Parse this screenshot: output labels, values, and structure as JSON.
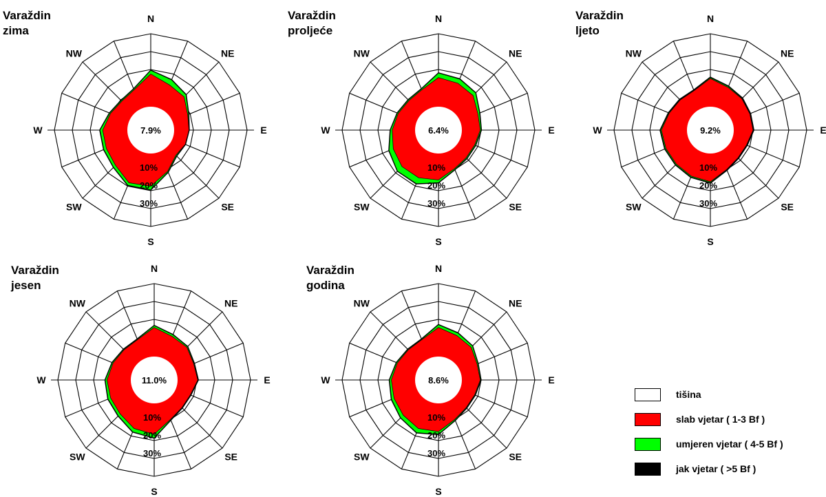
{
  "directions": [
    "N",
    "NNE",
    "NE",
    "ENE",
    "E",
    "ESE",
    "SE",
    "SSE",
    "S",
    "SSW",
    "SW",
    "WSW",
    "W",
    "WNW",
    "NW",
    "NNW"
  ],
  "direction_labels": {
    "N": "N",
    "NE": "NE",
    "E": "E",
    "SE": "SE",
    "S": "S",
    "SW": "SW",
    "W": "W",
    "NW": "NW"
  },
  "ring_labels": [
    "10%",
    "20%",
    "30%"
  ],
  "legend": [
    {
      "label": "tišina",
      "color": "#ffffff"
    },
    {
      "label": "slab vjetar ( 1-3 Bf )",
      "color": "#ff0000"
    },
    {
      "label": "umjeren vjetar ( 4-5 Bf )",
      "color": "#00ff00"
    },
    {
      "label": "jak vjetar ( >5 Bf )",
      "color": "#000000"
    }
  ],
  "chart_data": [
    {
      "type": "windrose",
      "title": [
        "Varaždin",
        "zima"
      ],
      "calm_label": "7.9%",
      "calm": 7.9,
      "rings": [
        10,
        20,
        30
      ],
      "series": [
        {
          "name": "slab vjetar ( 1-3 Bf )",
          "color": "#ff0000",
          "values": [
            17.5,
            13.5,
            12.5,
            8.5,
            7.5,
            7,
            6,
            11,
            17.5,
            18,
            14,
            13,
            13,
            10.5,
            9,
            10.5
          ]
        },
        {
          "name": "umjeren vjetar ( 4-5 Bf )",
          "color": "#00ff00",
          "values": [
            2,
            3,
            1.5,
            0.5,
            0,
            0,
            0.5,
            0.5,
            2,
            1.5,
            1.5,
            1.5,
            1.5,
            0.5,
            0.5,
            0.5
          ]
        },
        {
          "name": "jak vjetar ( >5 Bf )",
          "color": "#000000",
          "values": [
            0.2,
            0.2,
            0.2,
            0.2,
            0.2,
            0.2,
            0.2,
            0.2,
            0.2,
            0.2,
            0.2,
            0.2,
            0.2,
            0.2,
            0.2,
            0.2
          ]
        }
      ]
    },
    {
      "type": "windrose",
      "title": [
        "Varaždin",
        "proljeće"
      ],
      "calm_label": "6.4%",
      "calm": 6.4,
      "rings": [
        10,
        20,
        30
      ],
      "series": [
        {
          "name": "slab vjetar ( 1-3 Bf )",
          "color": "#ff0000",
          "values": [
            15.5,
            14.5,
            13.5,
            10,
            9.5,
            8,
            8,
            9.5,
            14,
            15,
            15,
            13.5,
            12,
            10.5,
            9.5,
            10.5
          ]
        },
        {
          "name": "umjeren vjetar ( 4-5 Bf )",
          "color": "#00ff00",
          "values": [
            2.5,
            2.5,
            2,
            1,
            0.5,
            0.5,
            0.5,
            0.5,
            1.5,
            3.5,
            3.5,
            2.5,
            1,
            0.5,
            0.5,
            0.5
          ]
        },
        {
          "name": "jak vjetar ( >5 Bf )",
          "color": "#000000",
          "values": [
            0.2,
            0.2,
            0.2,
            0.2,
            0.2,
            0.2,
            0.2,
            0.2,
            0.2,
            0.2,
            0.2,
            0.2,
            0.2,
            0.2,
            0.2,
            0.2
          ]
        }
      ]
    },
    {
      "type": "windrose",
      "title": [
        "Varaždin",
        "ljeto"
      ],
      "calm_label": "9.2%",
      "calm": 9.2,
      "rings": [
        10,
        20,
        30
      ],
      "series": [
        {
          "name": "slab vjetar ( 1-3 Bf )",
          "color": "#ff0000",
          "values": [
            15,
            12,
            11,
            10,
            10,
            8,
            8,
            10,
            15,
            14,
            13,
            13,
            13.5,
            11,
            10,
            10
          ]
        },
        {
          "name": "umjeren vjetar ( 4-5 Bf )",
          "color": "#00ff00",
          "values": [
            0.5,
            0.5,
            0.3,
            0.2,
            0.2,
            0.2,
            0.2,
            0.2,
            0.5,
            0.5,
            0.5,
            0.5,
            0.5,
            0.3,
            0.2,
            0.2
          ]
        },
        {
          "name": "jak vjetar ( >5 Bf )",
          "color": "#000000",
          "values": [
            0.3,
            0.3,
            0.3,
            0.3,
            0.3,
            0.3,
            0.3,
            0.3,
            0.3,
            0.3,
            0.3,
            0.3,
            0.3,
            0.3,
            0.3,
            0.3
          ]
        }
      ]
    },
    {
      "type": "windrose",
      "title": [
        "Varaždin",
        "jesen"
      ],
      "calm_label": "11.0%",
      "calm": 11.0,
      "rings": [
        10,
        20,
        30
      ],
      "series": [
        {
          "name": "slab vjetar ( 1-3 Bf )",
          "color": "#ff0000",
          "values": [
            15.5,
            12.5,
            12,
            10,
            10.5,
            8,
            8,
            10,
            16.5,
            15.5,
            13,
            12.5,
            12.5,
            11,
            10,
            10.5
          ]
        },
        {
          "name": "umjeren vjetar ( 4-5 Bf )",
          "color": "#00ff00",
          "values": [
            1,
            1,
            0.5,
            0.3,
            0.2,
            0.2,
            0.2,
            0.3,
            2,
            2,
            1.5,
            1.5,
            1,
            0.5,
            0.3,
            0.3
          ]
        },
        {
          "name": "jak vjetar ( >5 Bf )",
          "color": "#000000",
          "values": [
            0.2,
            0.2,
            0.2,
            0.2,
            0.2,
            0.2,
            0.2,
            0.2,
            0.2,
            0.2,
            0.2,
            0.2,
            0.2,
            0.2,
            0.2,
            0.2
          ]
        }
      ]
    },
    {
      "type": "windrose",
      "title": [
        "Varaždin",
        "godina"
      ],
      "calm_label": "8.6%",
      "calm": 8.6,
      "rings": [
        10,
        20,
        30
      ],
      "series": [
        {
          "name": "slab vjetar ( 1-3 Bf )",
          "color": "#ff0000",
          "values": [
            15.5,
            13,
            12,
            9.5,
            9.5,
            8,
            8,
            10,
            15,
            15.5,
            14,
            13,
            12.5,
            11,
            10,
            10.5
          ]
        },
        {
          "name": "umjeren vjetar ( 4-5 Bf )",
          "color": "#00ff00",
          "values": [
            1.5,
            1.5,
            1,
            0.5,
            0.3,
            0.3,
            0.3,
            0.5,
            1.5,
            2.5,
            2,
            1.5,
            1,
            0.5,
            0.3,
            0.3
          ]
        },
        {
          "name": "jak vjetar ( >5 Bf )",
          "color": "#000000",
          "values": [
            0.2,
            0.2,
            0.2,
            0.2,
            0.2,
            0.2,
            0.2,
            0.2,
            0.2,
            0.2,
            0.2,
            0.2,
            0.2,
            0.2,
            0.2,
            0.2
          ]
        }
      ]
    }
  ]
}
